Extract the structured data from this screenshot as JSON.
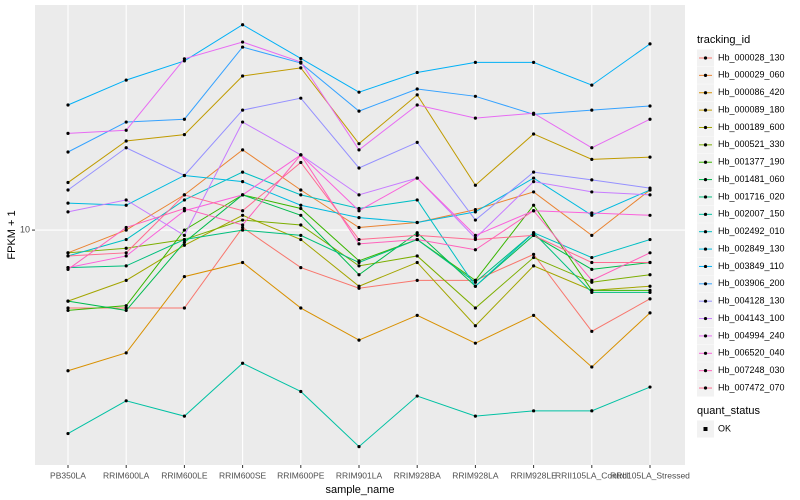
{
  "chart_data": {
    "type": "line",
    "x_label": "sample_name",
    "y_label": "FPKM + 1",
    "legend_title": "tracking_id",
    "point_legend_title": "quant_status",
    "point_legend_label": "OK",
    "point_color": "#000000",
    "log_scale": true,
    "grid": true,
    "ylim": [
      1.65,
      56.2
    ],
    "yticks": [
      10
    ],
    "categories": [
      "PB350LA",
      "RRIM600LA",
      "RRIM600LE",
      "RRIM600SE",
      "RRIM600PE",
      "RRIM901LA",
      "RRIM928BA",
      "RRIM928LA",
      "RRIM928LE",
      "RRII105LA_Control",
      "RRII105LA_Stressed"
    ],
    "series": [
      {
        "name": "Hb_000028_130",
        "color": "#F8766D",
        "values": [
          5.5,
          5.5,
          5.5,
          10.2,
          7.5,
          6.4,
          6.8,
          6.8,
          8.3,
          4.6,
          5.9
        ]
      },
      {
        "name": "Hb_000029_060",
        "color": "#EA8331",
        "values": [
          8.4,
          10,
          13.1,
          18.5,
          13.6,
          10.2,
          10.6,
          11.7,
          13.4,
          9.6,
          13.6
        ]
      },
      {
        "name": "Hb_000086_420",
        "color": "#D89000",
        "values": [
          3.4,
          3.9,
          7.0,
          7.8,
          5.5,
          4.3,
          5.2,
          4.2,
          5.2,
          3.5,
          5.3
        ]
      },
      {
        "name": "Hb_000089_180",
        "color": "#C09B00",
        "values": [
          14.4,
          19.8,
          20.8,
          32.6,
          34.7,
          19.4,
          28.2,
          14.1,
          20.9,
          17.2,
          17.5
        ]
      },
      {
        "name": "Hb_000189_600",
        "color": "#A3A500",
        "values": [
          5.8,
          6.8,
          8.9,
          11.2,
          9.3,
          6.5,
          7.8,
          4.8,
          7.6,
          6.3,
          6.5
        ]
      },
      {
        "name": "Hb_000521_330",
        "color": "#7CAE00",
        "values": [
          8.4,
          8.7,
          9.3,
          10.8,
          10.4,
          7.6,
          8.2,
          5.5,
          8.1,
          6.7,
          7.1
        ]
      },
      {
        "name": "Hb_001377_190",
        "color": "#39B600",
        "values": [
          5.4,
          5.6,
          10,
          13.1,
          11.8,
          7.9,
          9.3,
          6.8,
          12.1,
          6.3,
          6.3
        ]
      },
      {
        "name": "Hb_001481_060",
        "color": "#00BB4E",
        "values": [
          5.8,
          5.4,
          9.1,
          13.1,
          11.2,
          7.1,
          9.8,
          6.5,
          9.6,
          7.4,
          7.8
        ]
      },
      {
        "name": "Hb_001716_020",
        "color": "#00BF7D",
        "values": [
          7.5,
          7.6,
          9.3,
          10,
          9.6,
          7.8,
          9.3,
          6.7,
          9.8,
          6.2,
          6.2
        ]
      },
      {
        "name": "Hb_002007_150",
        "color": "#00C1A3",
        "values": [
          2.1,
          2.7,
          2.4,
          3.6,
          2.9,
          1.9,
          2.8,
          2.4,
          2.5,
          2.5,
          3.0
        ]
      },
      {
        "name": "Hb_002492_010",
        "color": "#00BFC4",
        "values": [
          8.2,
          9.3,
          12.6,
          15.6,
          13.1,
          11.8,
          12.6,
          6.5,
          9.8,
          8.1,
          9.3
        ]
      },
      {
        "name": "Hb_002849_130",
        "color": "#00BAE0",
        "values": [
          12.3,
          12.1,
          15.2,
          14.5,
          12.1,
          11,
          10.6,
          11.5,
          14.9,
          11.2,
          13.6
        ]
      },
      {
        "name": "Hb_003849_110",
        "color": "#00B0F6",
        "values": [
          26.1,
          31.6,
          36.6,
          48.3,
          37.3,
          28.8,
          33.5,
          36.2,
          36.2,
          30.4,
          41.7
        ]
      },
      {
        "name": "Hb_003906_200",
        "color": "#35A2FF",
        "values": [
          18.2,
          22.9,
          23.4,
          40.7,
          36.0,
          24.9,
          29.5,
          27.9,
          24.3,
          25.1,
          25.9
        ]
      },
      {
        "name": "Hb_004128_130",
        "color": "#9590FF",
        "values": [
          13.6,
          18.8,
          15.2,
          25.1,
          27.5,
          16.1,
          19.6,
          10.8,
          15.6,
          14.7,
          13.8
        ]
      },
      {
        "name": "Hb_004143_100",
        "color": "#C77CFF",
        "values": [
          11.5,
          12.6,
          9.6,
          22.9,
          17.8,
          13.1,
          14.9,
          9.4,
          14.5,
          13.4,
          13.1
        ]
      },
      {
        "name": "Hb_004994_240",
        "color": "#E76BF3",
        "values": [
          21.0,
          21.5,
          37.2,
          42.3,
          36.3,
          18.5,
          26.1,
          23.6,
          24.5,
          18.8,
          23.4
        ]
      },
      {
        "name": "Hb_006520_040",
        "color": "#FA62DB",
        "values": [
          7.5,
          8.2,
          11.6,
          13.1,
          17.8,
          11.6,
          14.9,
          9.6,
          11.6,
          11.4,
          11.2
        ]
      },
      {
        "name": "Hb_007248_030",
        "color": "#FF62BC",
        "values": [
          7.4,
          10.2,
          11.8,
          10.4,
          17.8,
          9.0,
          9.3,
          8.6,
          11.6,
          6.8,
          8.4
        ]
      },
      {
        "name": "Hb_007472_070",
        "color": "#FF6C91",
        "values": [
          8.2,
          8.4,
          13.1,
          11.6,
          16.8,
          9.3,
          9.6,
          9.3,
          9.6,
          7.8,
          7.8
        ]
      }
    ]
  }
}
